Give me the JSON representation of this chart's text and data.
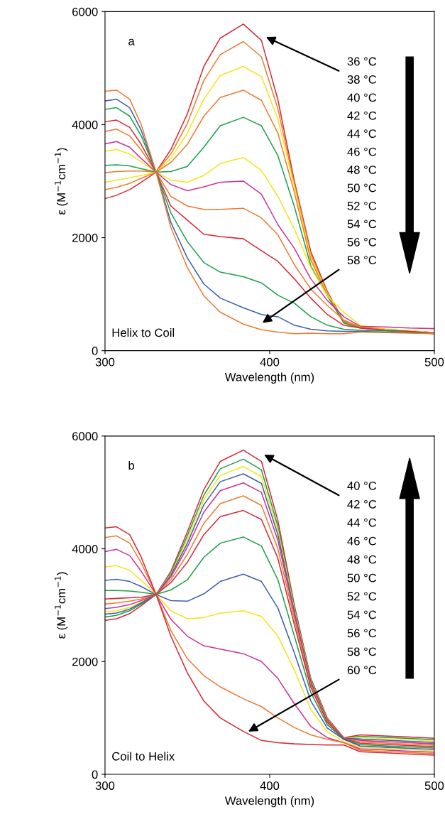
{
  "chart_data": [
    {
      "type": "line",
      "xlabel": "Wavelength (nm)",
      "ylabel": "ε (M$^{−1}$cm$^{−1}$)",
      "xlim": [
        300,
        500
      ],
      "ylim": [
        0,
        6000
      ],
      "xticks": [
        300,
        400,
        500
      ],
      "yticks": [
        0,
        2000,
        4000,
        6000
      ],
      "x": [
        300,
        307,
        315,
        322,
        331,
        340,
        350,
        360,
        370,
        384,
        395,
        405,
        415,
        425,
        435,
        445,
        455,
        470,
        485,
        500
      ],
      "annotations": [
        "a",
        "Helix to Coil",
        "36 °C",
        "38 °C",
        "40 °C",
        "42 °C",
        "44 °C",
        "46 °C",
        "48 °C",
        "50 °C",
        "52 °C",
        "54 °C",
        "56 °C",
        "58 °C"
      ],
      "series": [
        {
          "color": "#d62a35",
          "values": [
            2690,
            2750,
            2850,
            2980,
            3160,
            3560,
            4190,
            5030,
            5530,
            5780,
            5490,
            4440,
            3000,
            1750,
            1050,
            520,
            420,
            380,
            350,
            320
          ]
        },
        {
          "color": "#ec7c30",
          "values": [
            2850,
            2890,
            2960,
            3050,
            3160,
            3480,
            4020,
            4780,
            5240,
            5470,
            5200,
            4280,
            2950,
            1700,
            1030,
            510,
            420,
            380,
            350,
            320
          ]
        },
        {
          "color": "#f2e61c",
          "values": [
            2980,
            3020,
            3060,
            3100,
            3160,
            3400,
            3850,
            4450,
            4870,
            5030,
            4850,
            4100,
            2900,
            1650,
            1010,
            500,
            410,
            380,
            350,
            320
          ]
        },
        {
          "color": "#ec7c30",
          "values": [
            3150,
            3170,
            3180,
            3180,
            3160,
            3330,
            3650,
            4150,
            4480,
            4610,
            4430,
            3850,
            2800,
            1600,
            990,
            500,
            410,
            370,
            340,
            310
          ]
        },
        {
          "color": "#1ea04b",
          "values": [
            3280,
            3290,
            3270,
            3220,
            3160,
            3170,
            3260,
            3600,
            3980,
            4130,
            3980,
            3450,
            2550,
            1500,
            970,
            490,
            400,
            370,
            340,
            310
          ]
        },
        {
          "color": "#f2e61c",
          "values": [
            3530,
            3560,
            3480,
            3340,
            3160,
            3020,
            2980,
            3100,
            3310,
            3420,
            3190,
            2730,
            2150,
            1470,
            970,
            680,
            450,
            380,
            350,
            320
          ]
        },
        {
          "color": "#cc3399",
          "values": [
            3660,
            3700,
            3600,
            3400,
            3160,
            2940,
            2830,
            2900,
            2980,
            3000,
            2770,
            2230,
            1810,
            1270,
            890,
            600,
            430,
            420,
            400,
            390
          ]
        },
        {
          "color": "#ec7c30",
          "values": [
            3880,
            3920,
            3800,
            3550,
            3160,
            2730,
            2560,
            2500,
            2500,
            2520,
            2350,
            2050,
            1520,
            1090,
            800,
            540,
            420,
            370,
            340,
            310
          ]
        },
        {
          "color": "#d62a35",
          "values": [
            4050,
            4080,
            3950,
            3650,
            3160,
            2560,
            2310,
            2060,
            2020,
            1980,
            1770,
            1580,
            1270,
            930,
            640,
            450,
            400,
            360,
            340,
            310
          ]
        },
        {
          "color": "#1ea04b",
          "values": [
            4270,
            4300,
            4150,
            3800,
            3160,
            2440,
            1930,
            1560,
            1390,
            1310,
            1200,
            980,
            840,
            600,
            450,
            380,
            360,
            350,
            330,
            300
          ]
        },
        {
          "color": "#3d5fb0",
          "values": [
            4420,
            4450,
            4300,
            3900,
            3160,
            2270,
            1640,
            1180,
            930,
            760,
            640,
            600,
            450,
            380,
            350,
            340,
            340,
            330,
            320,
            300
          ]
        },
        {
          "color": "#ec7c30",
          "values": [
            4590,
            4610,
            4450,
            4000,
            3160,
            2180,
            1470,
            970,
            680,
            470,
            370,
            330,
            300,
            310,
            300,
            300,
            330,
            320,
            310,
            300
          ]
        }
      ]
    },
    {
      "type": "line",
      "xlabel": "Wavelength (nm)",
      "ylabel": "ε (M$^{−1}$cm$^{−1}$)",
      "xlim": [
        300,
        500
      ],
      "ylim": [
        0,
        6000
      ],
      "xticks": [
        300,
        400,
        500
      ],
      "yticks": [
        0,
        2000,
        4000,
        6000
      ],
      "x": [
        300,
        307,
        315,
        322,
        331,
        340,
        350,
        360,
        370,
        384,
        395,
        405,
        415,
        425,
        435,
        445,
        455,
        470,
        485,
        500
      ],
      "annotations": [
        "b",
        "Coil to Helix",
        "40 °C",
        "42 °C",
        "44 °C",
        "46 °C",
        "48 °C",
        "50 °C",
        "52 °C",
        "54 °C",
        "56 °C",
        "58 °C",
        "60 °C"
      ],
      "series": [
        {
          "color": "#d62a35",
          "values": [
            2730,
            2760,
            2850,
            2990,
            3190,
            3600,
            4300,
            5050,
            5550,
            5750,
            5550,
            4500,
            3000,
            1700,
            1000,
            650,
            700,
            680,
            660,
            640
          ]
        },
        {
          "color": "#1ea04b",
          "values": [
            2790,
            2820,
            2900,
            3020,
            3190,
            3570,
            4230,
            4950,
            5420,
            5590,
            5400,
            4400,
            2950,
            1680,
            990,
            640,
            675,
            655,
            635,
            615
          ]
        },
        {
          "color": "#f2e61c",
          "values": [
            2880,
            2900,
            2960,
            3050,
            3190,
            3550,
            4170,
            4870,
            5300,
            5460,
            5280,
            4330,
            2920,
            1660,
            980,
            640,
            650,
            630,
            610,
            590
          ]
        },
        {
          "color": "#3d5fb0",
          "values": [
            2840,
            2860,
            2930,
            3040,
            3190,
            3530,
            4100,
            4780,
            5190,
            5330,
            5160,
            4250,
            2880,
            1640,
            970,
            640,
            625,
            605,
            585,
            565
          ]
        },
        {
          "color": "#cc3399",
          "values": [
            2940,
            2960,
            3010,
            3080,
            3190,
            3500,
            4030,
            4650,
            5030,
            5170,
            5000,
            4150,
            2830,
            1620,
            960,
            640,
            600,
            580,
            560,
            540
          ]
        },
        {
          "color": "#ec7c30",
          "values": [
            3020,
            3040,
            3070,
            3110,
            3190,
            3450,
            3900,
            4450,
            4800,
            4940,
            4770,
            4000,
            2750,
            1580,
            940,
            630,
            575,
            555,
            535,
            515
          ]
        },
        {
          "color": "#d62a35",
          "values": [
            3110,
            3120,
            3130,
            3140,
            3190,
            3400,
            3760,
            4250,
            4570,
            4680,
            4520,
            3830,
            2650,
            1540,
            920,
            630,
            550,
            530,
            510,
            490
          ]
        },
        {
          "color": "#1ea04b",
          "values": [
            3260,
            3260,
            3250,
            3230,
            3190,
            3270,
            3450,
            3850,
            4100,
            4210,
            4050,
            3450,
            2450,
            1450,
            880,
            620,
            525,
            505,
            485,
            465
          ]
        },
        {
          "color": "#3d5fb0",
          "values": [
            3440,
            3460,
            3420,
            3330,
            3190,
            3080,
            3070,
            3200,
            3420,
            3550,
            3420,
            2950,
            2150,
            1300,
            820,
            620,
            500,
            480,
            460,
            440
          ]
        },
        {
          "color": "#f2e61c",
          "values": [
            3680,
            3700,
            3620,
            3440,
            3190,
            2900,
            2760,
            2780,
            2860,
            2900,
            2800,
            2450,
            1850,
            1150,
            750,
            580,
            475,
            455,
            435,
            415
          ]
        },
        {
          "color": "#cc3399",
          "values": [
            3950,
            3990,
            3880,
            3600,
            3190,
            2750,
            2450,
            2280,
            2220,
            2140,
            2000,
            1700,
            1250,
            850,
            650,
            560,
            450,
            430,
            410,
            390
          ]
        },
        {
          "color": "#ec7c30",
          "values": [
            4200,
            4230,
            4100,
            3750,
            3190,
            2550,
            2050,
            1750,
            1550,
            1340,
            1200,
            1000,
            830,
            700,
            620,
            560,
            425,
            405,
            385,
            365
          ]
        },
        {
          "color": "#d62a35",
          "values": [
            4370,
            4390,
            4250,
            3850,
            3190,
            2450,
            1800,
            1300,
            1000,
            760,
            600,
            560,
            540,
            530,
            520,
            520,
            400,
            380,
            360,
            340
          ]
        }
      ]
    }
  ]
}
